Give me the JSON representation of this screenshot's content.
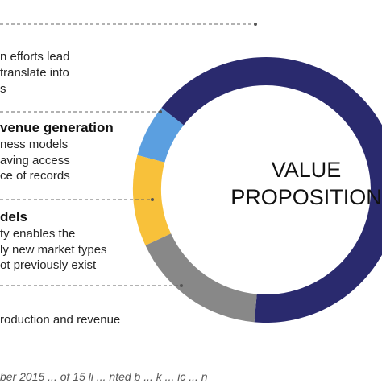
{
  "center": {
    "line1": "VALUE",
    "line2": "PROPOSITION"
  },
  "segments": [
    {
      "id": "navy",
      "color": "#2a2a6e"
    },
    {
      "id": "blue",
      "color": "#5b9fe0"
    },
    {
      "id": "yellow",
      "color": "#f8c13a"
    },
    {
      "id": "gray",
      "color": "#888888"
    }
  ],
  "sections": [
    {
      "lines": [
        "n efforts lead",
        "translate into",
        "s"
      ]
    },
    {
      "heading": "venue generation",
      "lines": [
        "ness models",
        "aving access",
        "ce of records"
      ]
    },
    {
      "heading": "dels",
      "lines": [
        "ty enables the",
        "ly new market types",
        "ot previously exist"
      ]
    },
    {
      "lines": [
        "roduction and revenue"
      ]
    }
  ],
  "footer": "ber 2015 ... of 15 li ... nted b ... k ... ic ... n"
}
